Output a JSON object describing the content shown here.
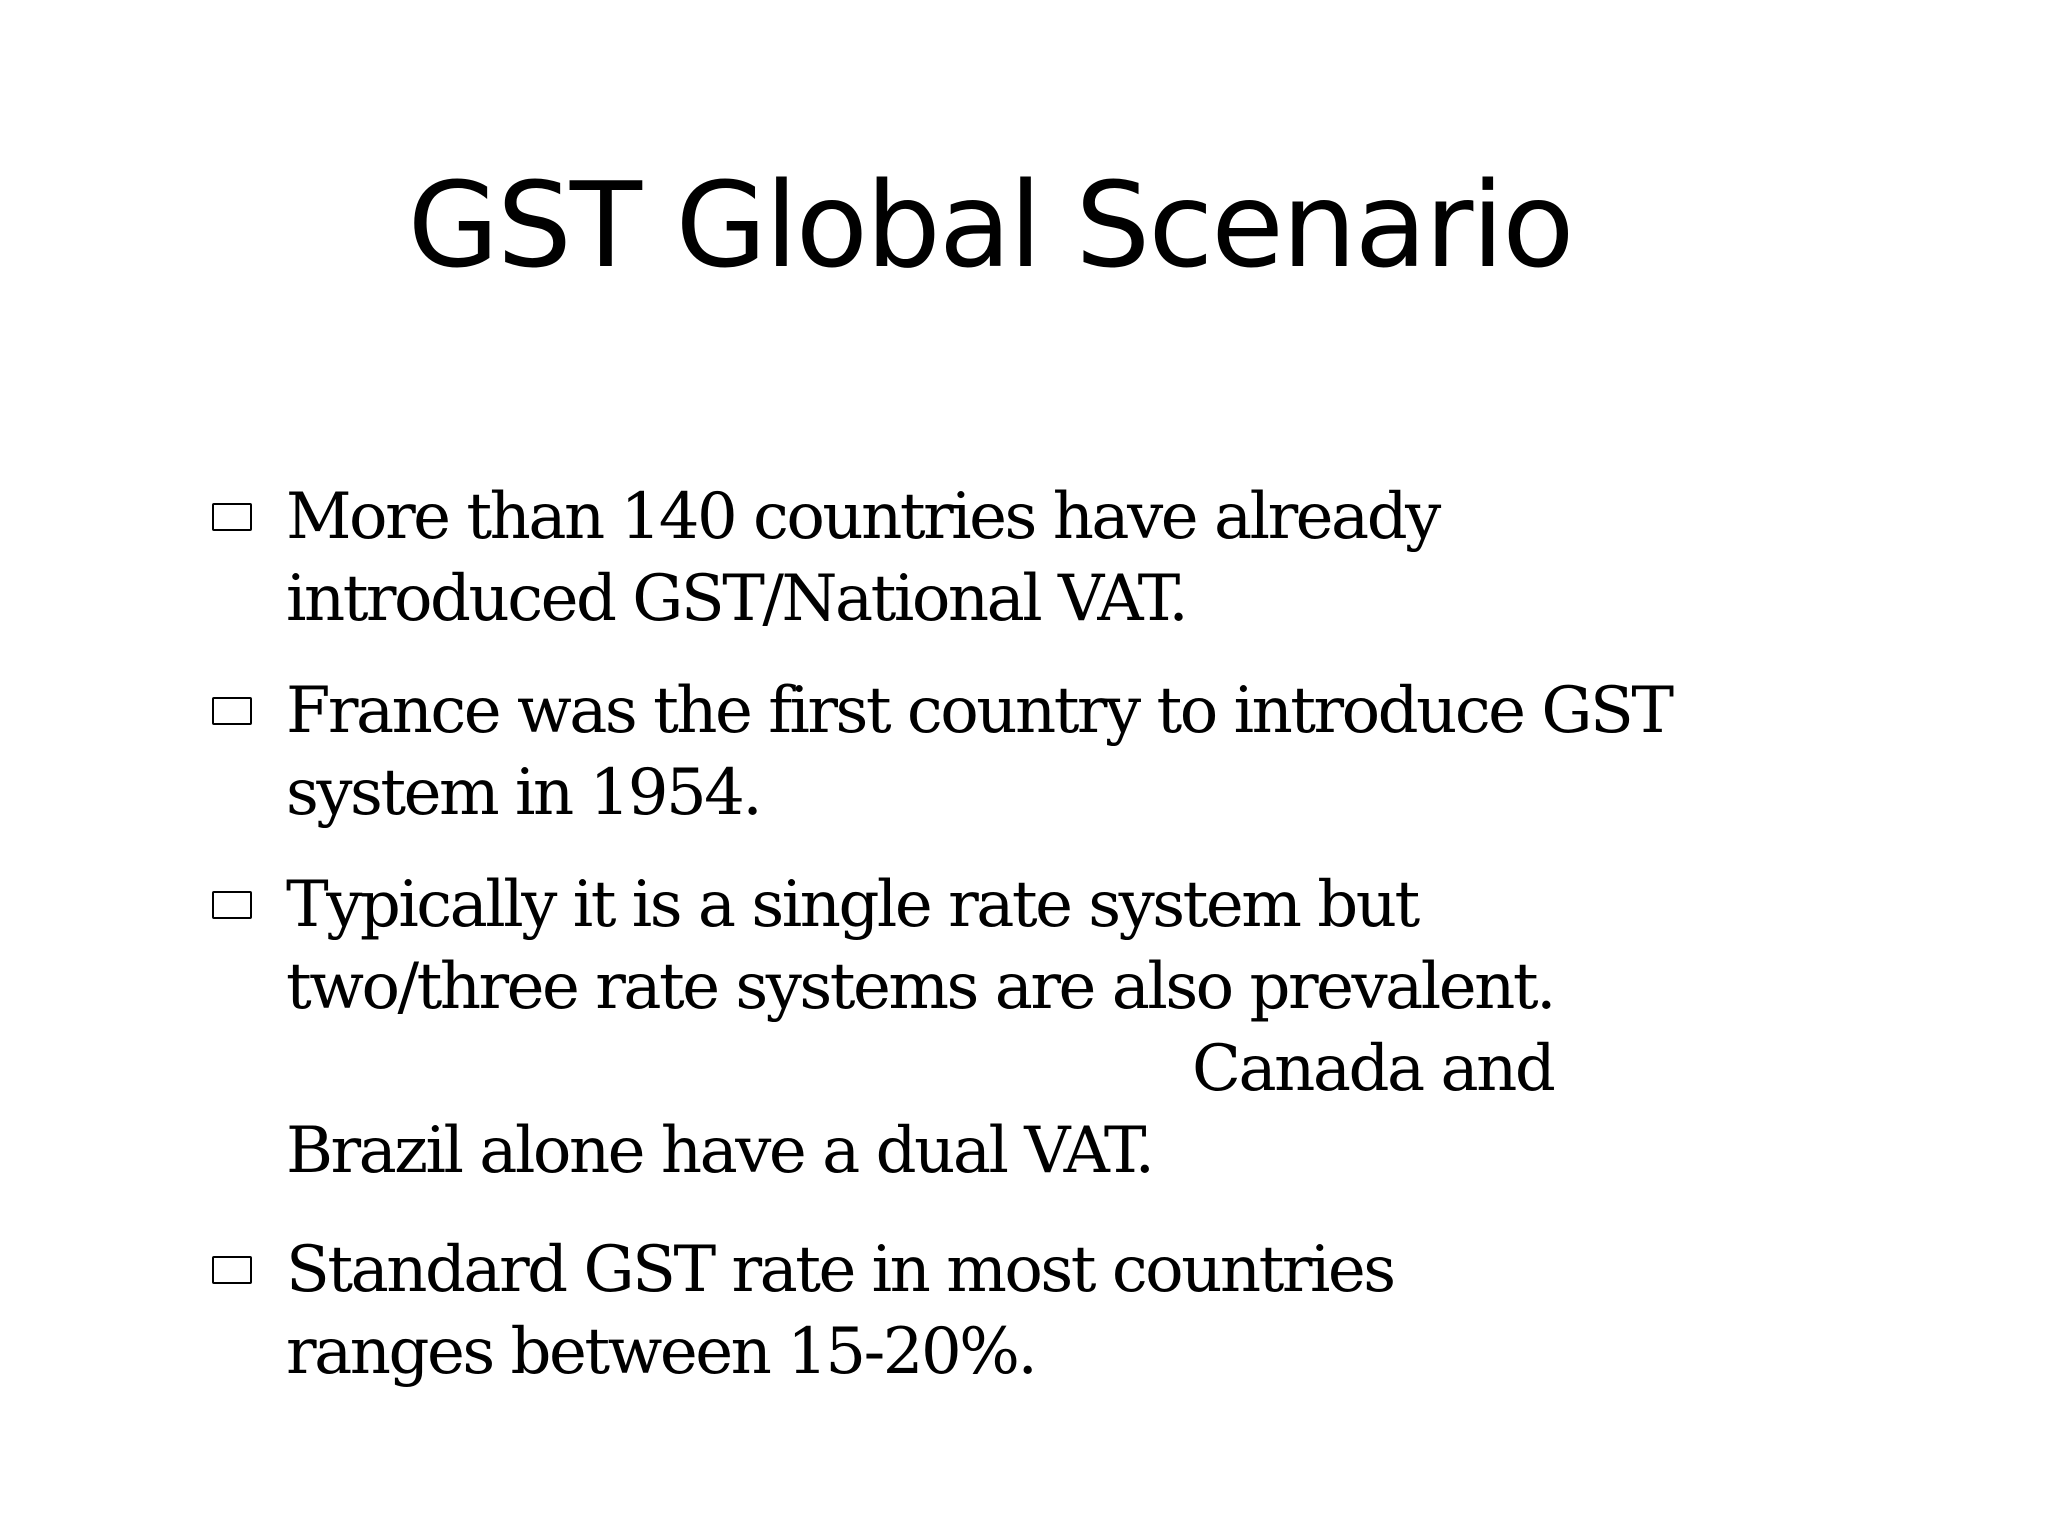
{
  "slide": {
    "title": "GST Global Scenario",
    "bullets": [
      {
        "lines": [
          "More than 140 countries have already",
          "introduced GST/National VAT."
        ]
      },
      {
        "lines": [
          "France was the first country to introduce GST",
          "system in 1954."
        ]
      },
      {
        "lines": [
          "Typically it is a single rate system but",
          "two/three rate systems are also prevalent.",
          "Canada and",
          "Brazil alone have a dual VAT."
        ]
      },
      {
        "lines": [
          "Standard GST rate in most countries",
          "ranges between 15-20%."
        ]
      }
    ],
    "bullet_icon": "square-bullet-icon",
    "text_color": "#000000",
    "background_color": "#ffffff"
  }
}
